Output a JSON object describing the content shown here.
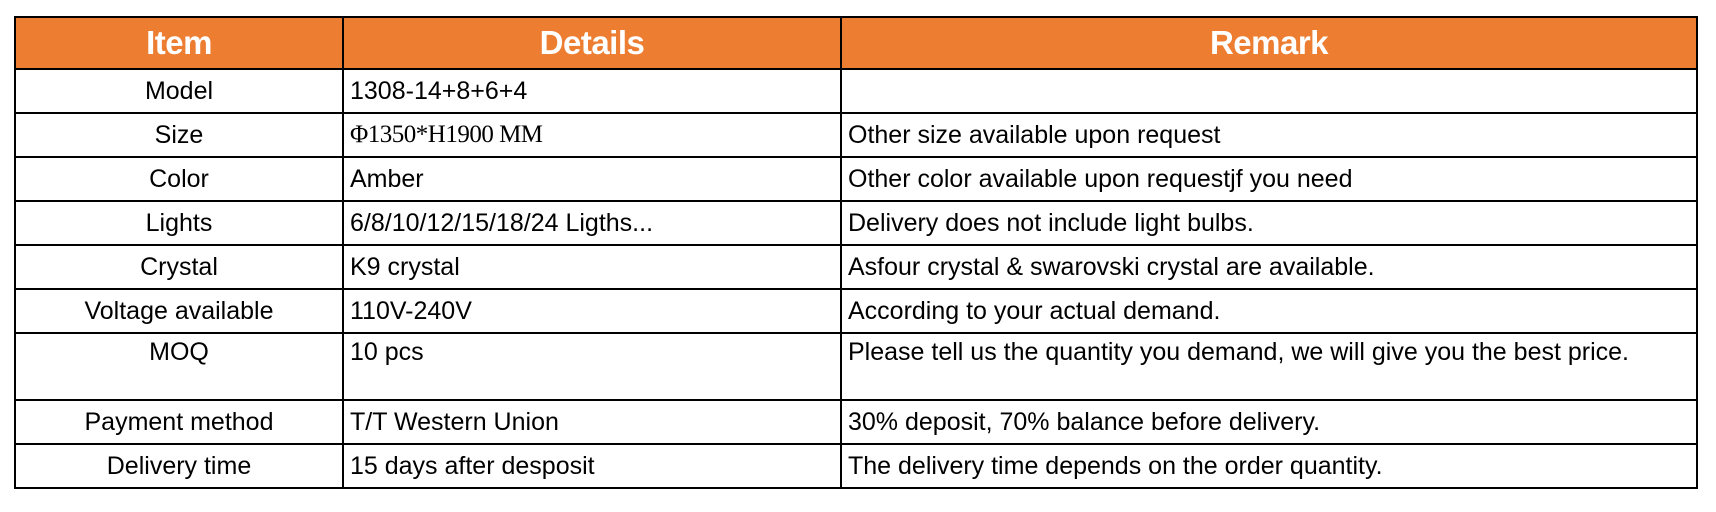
{
  "header": {
    "item": "Item",
    "details": "Details",
    "remark": "Remark",
    "color": "#ED7D31"
  },
  "rows": [
    {
      "item": "Model",
      "details": "1308-14+8+6+4",
      "remark": ""
    },
    {
      "item": "Size",
      "details": "Φ1350*H1900 MM",
      "remark": "Other size available upon request"
    },
    {
      "item": "Color",
      "details": "Amber",
      "remark": "Other color available upon requestjf you need"
    },
    {
      "item": "Lights",
      "details": "6/8/10/12/15/18/24 Ligths...",
      "remark": "Delivery does not include light bulbs."
    },
    {
      "item": "Crystal",
      "details": "K9 crystal",
      "remark": "Asfour crystal & swarovski crystal are available."
    },
    {
      "item": "Voltage available",
      "details": "110V-240V",
      "remark": "According to your actual demand."
    },
    {
      "item": "MOQ",
      "details": "10 pcs",
      "remark": "Please tell us the quantity you demand, we will give you the best price."
    },
    {
      "item": "Payment method",
      "details": "T/T Western Union",
      "remark": "30% deposit, 70% balance before delivery."
    },
    {
      "item": "Delivery time",
      "details": "15 days after desposit",
      "remark": "The delivery time depends on the order quantity."
    }
  ]
}
